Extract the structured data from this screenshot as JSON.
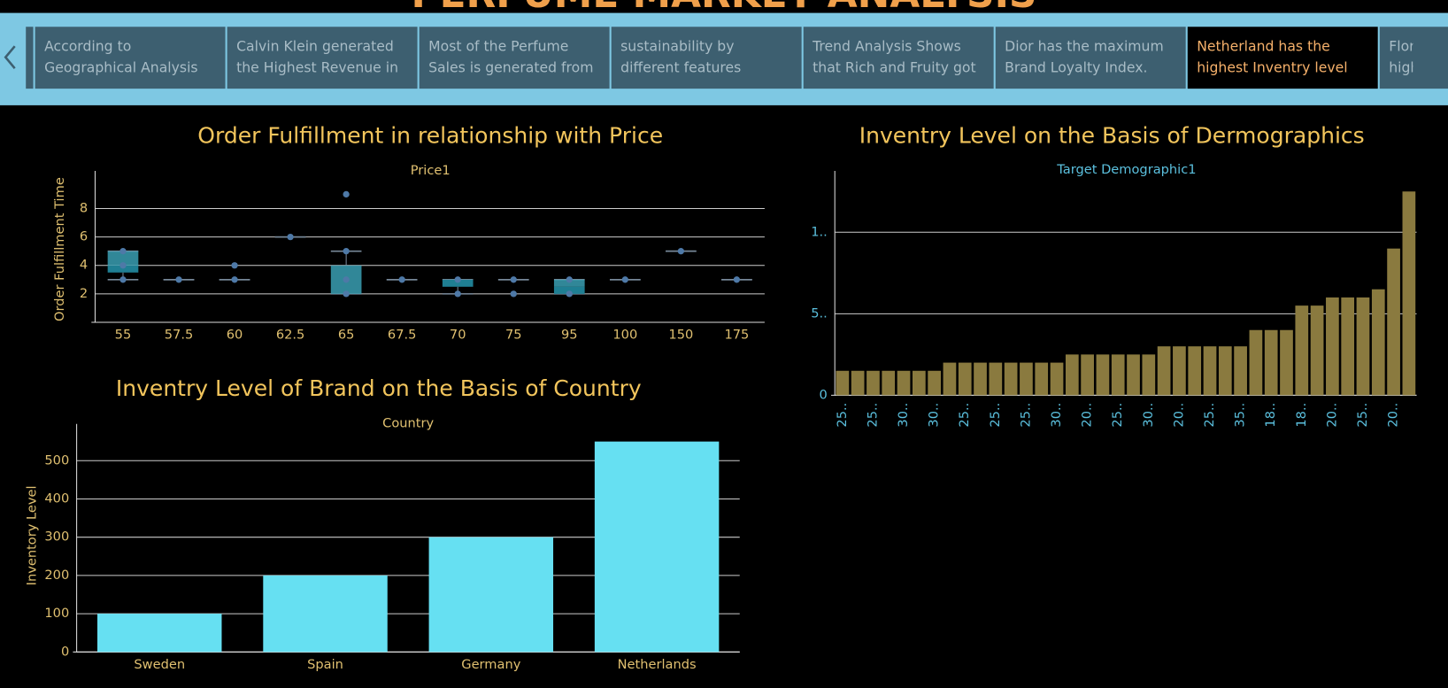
{
  "header": {
    "title": "PERFUME MARKET ANALYSIS"
  },
  "story_points": [
    "According to Geographical Analysis",
    "Calvin Klein generated the Highest Revenue in",
    "Most of the Perfume Sales is generated from",
    "sustainability by different features",
    "Trend Analysis Shows that Rich and Fruity got",
    "Dior has the maximum Brand Loyalty Index.",
    "Netherland has the highest Inventry level",
    "Flora higher"
  ],
  "chart_data": [
    {
      "type": "box",
      "title": "Order Fulfillment in relationship with Price",
      "x_header": "Price1",
      "y_label": "Order Fulfillment Time",
      "categories": [
        "55",
        "57.5",
        "60",
        "62.5",
        "65",
        "67.5",
        "70",
        "75",
        "95",
        "100",
        "150",
        "175"
      ],
      "boxes": [
        {
          "low": 3,
          "q1": 3.5,
          "median": 4,
          "q3": 5,
          "high": 5
        },
        {
          "low": 3,
          "q1": 3,
          "median": 3,
          "q3": 3,
          "high": 3
        },
        {
          "low": 3,
          "q1": 3,
          "median": 3,
          "q3": 3,
          "high": 3
        },
        {
          "low": 6,
          "q1": 6,
          "median": 6,
          "q3": 6,
          "high": 6
        },
        {
          "low": 2,
          "q1": 2,
          "median": 2,
          "q3": 4,
          "high": 5
        },
        {
          "low": 3,
          "q1": 3,
          "median": 3,
          "q3": 3,
          "high": 3
        },
        {
          "low": 2,
          "q1": 2.5,
          "median": 3,
          "q3": 3,
          "high": 3
        },
        {
          "low": 3,
          "q1": 3,
          "median": 3,
          "q3": 3,
          "high": 3
        },
        {
          "low": 2,
          "q1": 2,
          "median": 2.5,
          "q3": 3,
          "high": 3
        },
        {
          "low": 3,
          "q1": 3,
          "median": 3,
          "q3": 3,
          "high": 3
        },
        {
          "low": 5,
          "q1": 5,
          "median": 5,
          "q3": 5,
          "high": 5
        },
        {
          "low": 3,
          "q1": 3,
          "median": 3,
          "q3": 3,
          "high": 3
        }
      ],
      "points": [
        [
          3,
          4,
          5
        ],
        [
          3
        ],
        [
          3,
          4
        ],
        [
          6
        ],
        [
          2,
          3,
          5,
          9
        ],
        [
          3
        ],
        [
          2,
          3
        ],
        [
          2,
          3
        ],
        [
          2,
          3
        ],
        [
          3
        ],
        [
          5
        ],
        [
          3
        ]
      ],
      "color": "#3a9fb3",
      "point_color": "#4e79a7",
      "ylim": [
        0,
        10
      ],
      "yticks": [
        2,
        4,
        6,
        8
      ],
      "grid": true
    },
    {
      "type": "bar",
      "title": "Inventry Level of Brand on the Basis of Country",
      "x_header": "Country",
      "y_label": "Inventory Level",
      "categories": [
        "Sweden",
        "Spain",
        "Germany",
        "Netherlands"
      ],
      "values": [
        100,
        200,
        300,
        550
      ],
      "color": "#66e0f2",
      "ylim": [
        0,
        572
      ],
      "yticks": [
        0,
        100,
        200,
        300,
        400,
        500
      ],
      "grid": true
    },
    {
      "type": "bar",
      "title": "Inventry Level on the Basis of Dermographics",
      "x_header": "Target Demographic1",
      "categories": [
        "25..",
        null,
        "25..",
        null,
        "30..",
        null,
        "30..",
        null,
        "25..",
        null,
        "25..",
        null,
        "25..",
        null,
        "30..",
        null,
        "20..",
        null,
        "25..",
        null,
        "30..",
        null,
        "20..",
        null,
        "25..",
        null,
        "35..",
        null,
        "18..",
        null,
        "18..",
        null,
        "20..",
        null,
        "25..",
        null,
        "20..",
        null
      ],
      "values": [
        15,
        15,
        15,
        15,
        15,
        15,
        15,
        20,
        20,
        20,
        20,
        20,
        20,
        20,
        20,
        25,
        25,
        25,
        25,
        25,
        25,
        30,
        30,
        30,
        30,
        30,
        30,
        40,
        40,
        40,
        55,
        55,
        60,
        60,
        60,
        65,
        90,
        125
      ],
      "color": "#8a7a3f",
      "ylim": [
        0,
        132
      ],
      "yticks": [
        0,
        {
          "value": 50,
          "label": "5.."
        },
        {
          "value": 100,
          "label": "1.."
        }
      ],
      "grid": true
    }
  ]
}
